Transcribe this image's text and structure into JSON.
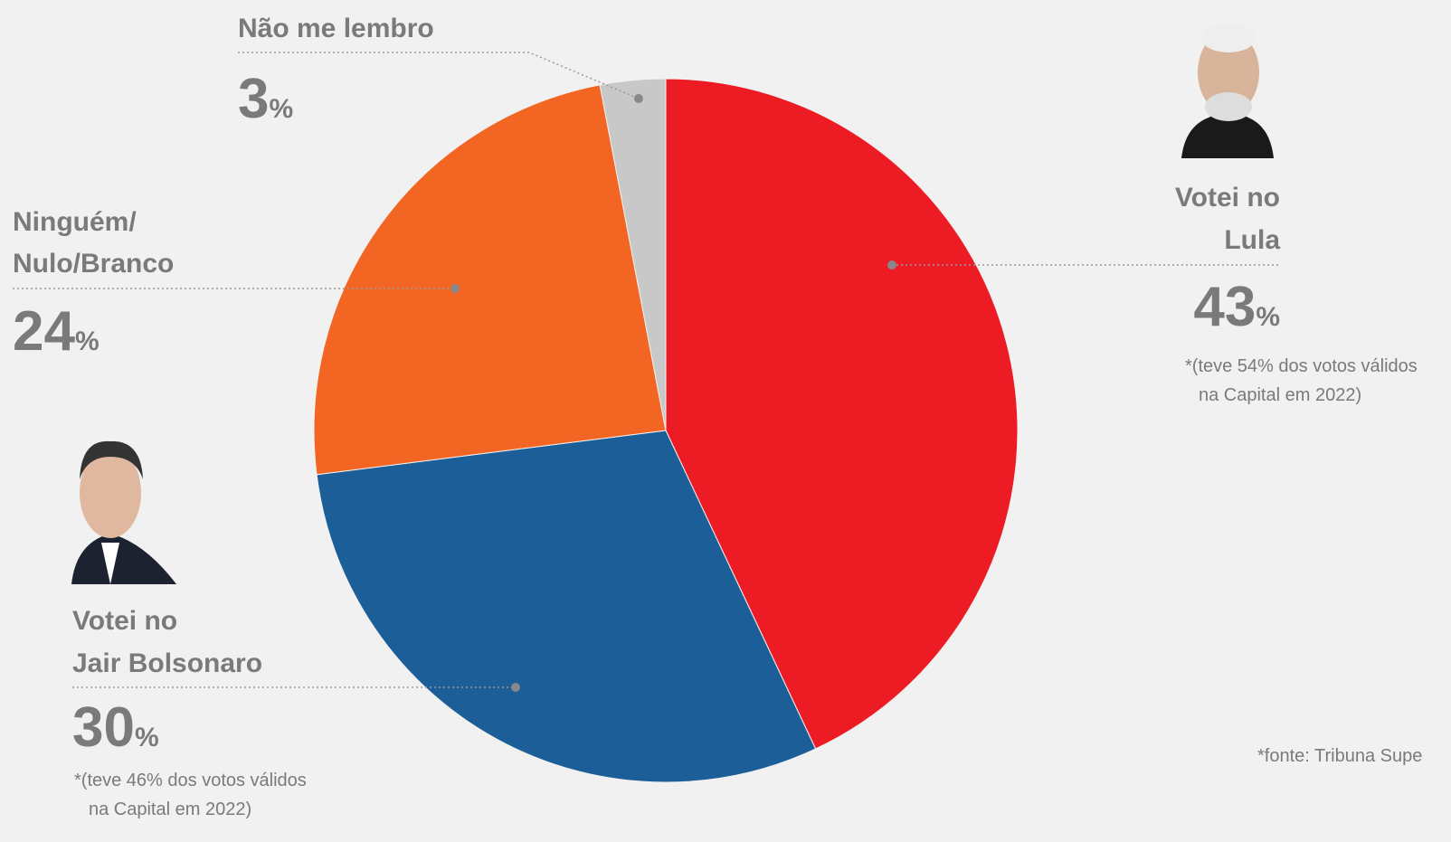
{
  "chart_data": {
    "type": "pie",
    "categories": [
      [
        "Votei no",
        "Lula"
      ],
      [
        "Votei no",
        "Jair Bolsonaro"
      ],
      [
        "Ninguém/",
        "Nulo/Branco"
      ],
      [
        "Não me lembro"
      ]
    ],
    "values": [
      43,
      30,
      24,
      3
    ],
    "value_labels": [
      "43%",
      "30%",
      "24%",
      "3%"
    ],
    "colors": [
      "#ed1c24",
      "#1c5f98",
      "#f26522",
      "#c8c8c8"
    ],
    "notes": [
      [
        "*(teve 54% dos votos válidos",
        "na Capital em 2022)"
      ],
      [
        "*(teve 46% dos votos válidos",
        "na Capital em 2022)"
      ],
      null,
      null
    ],
    "source": "*fonte: Tribuna Supe"
  }
}
